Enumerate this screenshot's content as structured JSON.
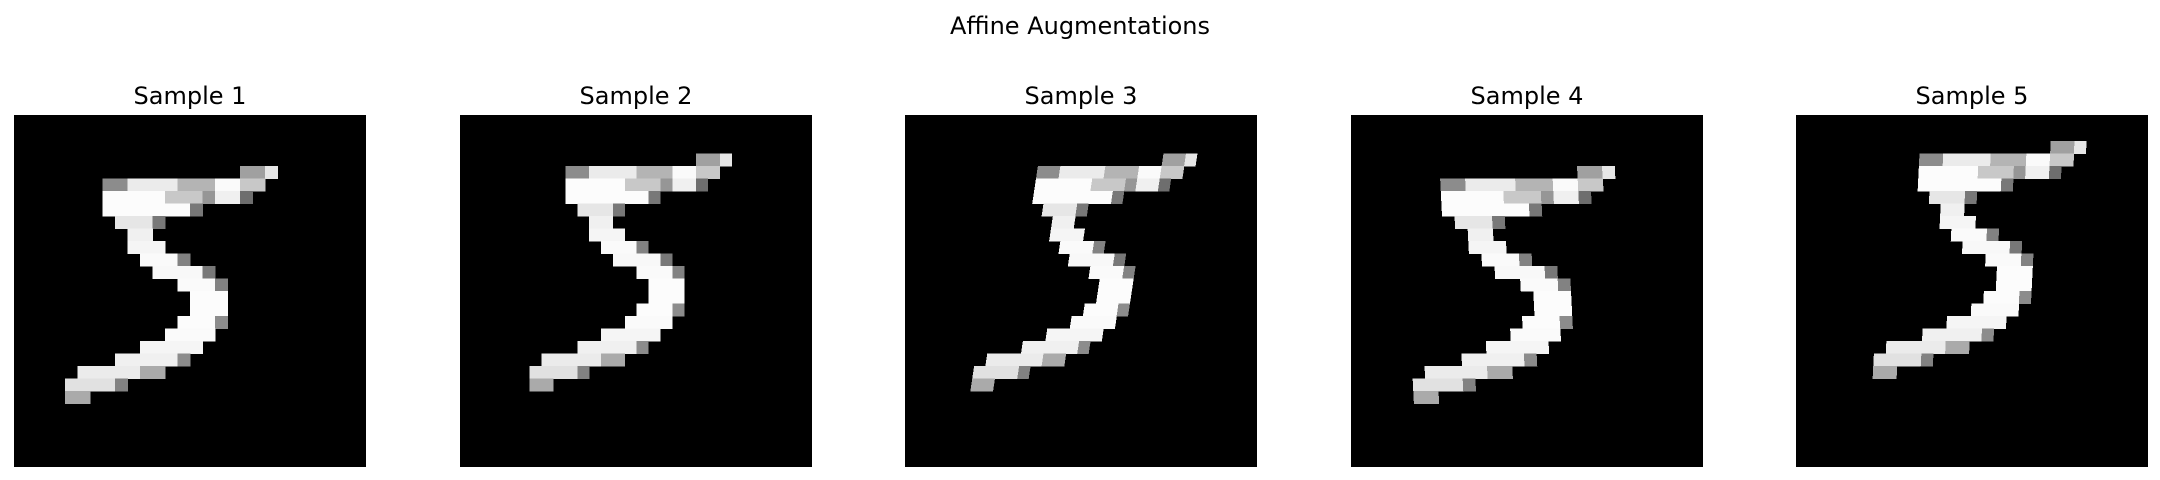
{
  "figure": {
    "title": "Affine Augmentations"
  },
  "panels": [
    {
      "title": "Sample 1",
      "image": "mnist-digit-5-affine-sample"
    },
    {
      "title": "Sample 2",
      "image": "mnist-digit-5-affine-sample"
    },
    {
      "title": "Sample 3",
      "image": "mnist-digit-5-affine-sample"
    },
    {
      "title": "Sample 4",
      "image": "mnist-digit-5-affine-sample"
    },
    {
      "title": "Sample 5",
      "image": "mnist-digit-5-affine-sample"
    }
  ]
}
